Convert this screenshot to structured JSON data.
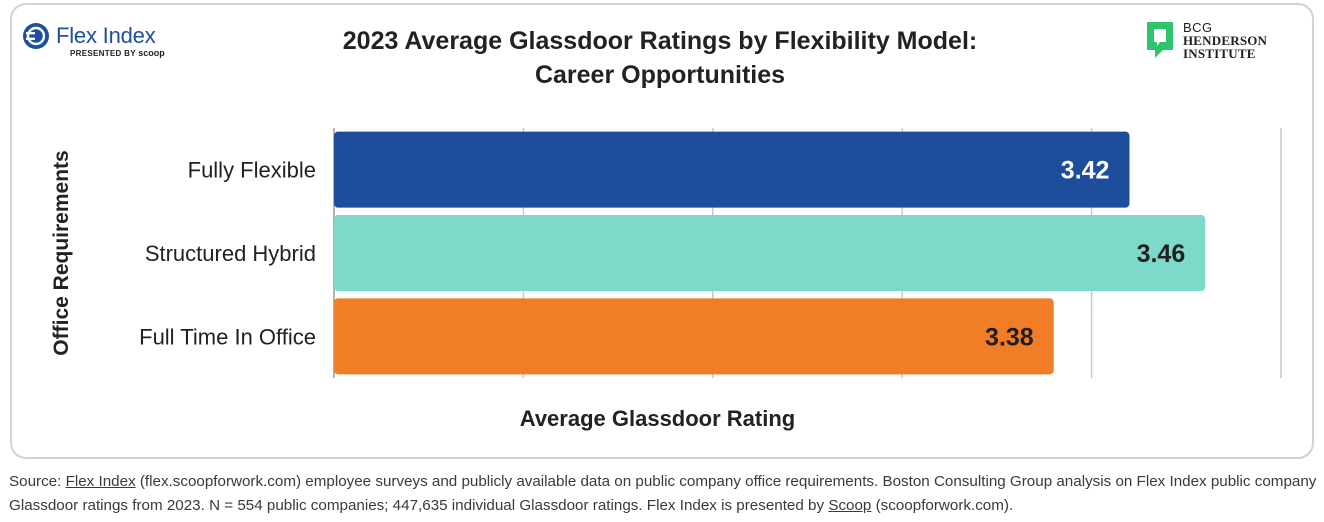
{
  "header": {
    "flex_logo_name": "Flex Index",
    "flex_logo_presented": "PRESENTED BY",
    "flex_logo_scoop": "scoop",
    "bcg_line1": "BCG",
    "bcg_line2": "HENDERSON",
    "bcg_line3": "INSTITUTE"
  },
  "colors": {
    "fully_flexible": "#1e4d9b",
    "structured_hybrid": "#7dd9c9",
    "full_time_in_office": "#f27d27",
    "flex_blue": "#1e4fa0",
    "bcg_green": "#2ec46b"
  },
  "chart_data": {
    "type": "bar",
    "orientation": "horizontal",
    "title": "2023 Average Glassdoor Ratings by Flexibility Model:",
    "subtitle": "Career Opportunities",
    "xlabel": "Average Glassdoor Rating",
    "ylabel": "Office Requirements",
    "categories": [
      "Fully Flexible",
      "Structured Hybrid",
      "Full Time In Office"
    ],
    "values": [
      3.42,
      3.46,
      3.38
    ],
    "value_labels": [
      "3.42",
      "3.46",
      "3.38"
    ],
    "xlim": [
      3.0,
      3.5
    ],
    "grid": true,
    "legend": "none"
  },
  "source": {
    "prefix": "Source: ",
    "link1": "Flex Index",
    "text1": " (flex.scoopforwork.com) employee surveys and publicly available data on public company office requirements. Boston Consulting Group analysis on Flex Index public company Glassdoor ratings from 2023. N = 554 public companies; 447,635 individual Glassdoor ratings. Flex Index is presented by ",
    "link2": "Scoop",
    "text2": " (scoopforwork.com)."
  }
}
